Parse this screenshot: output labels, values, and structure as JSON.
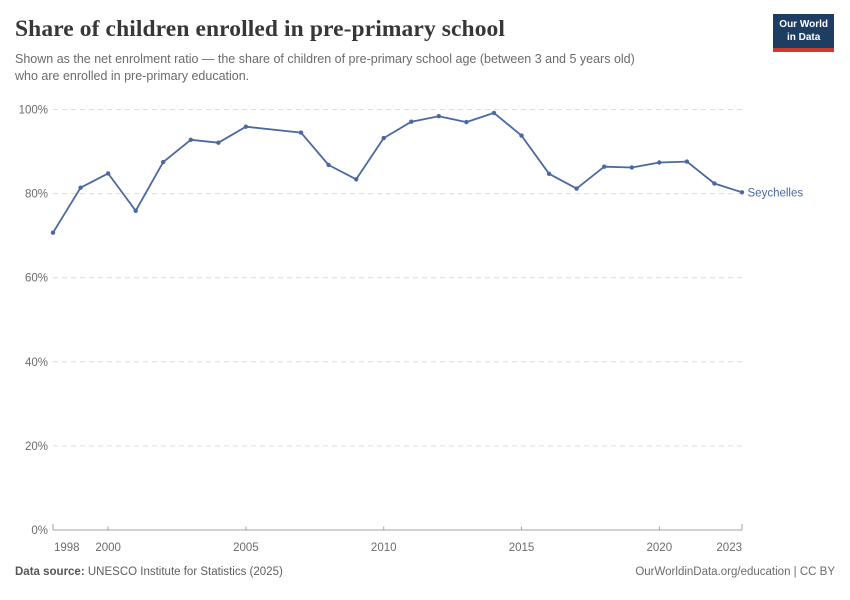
{
  "header": {
    "title": "Share of children enrolled in pre-primary school",
    "subtitle_line1": "Shown as the net enrolment ratio — the share of children of pre-primary school age (between 3 and 5 years old)",
    "subtitle_line2": "who are enrolled in pre-primary education.",
    "logo": {
      "line1": "Our World",
      "line2": "in Data"
    }
  },
  "footer": {
    "datasource_label": "Data source:",
    "datasource_value": "UNESCO Institute for Statistics (2025)",
    "rights": "OurWorldinData.org/education | CC BY"
  },
  "colors": {
    "line": "#4a69a2",
    "grid": "#dcdcdc",
    "axis": "#a3a3a3",
    "tick_text": "#6b6b6b",
    "logo_navy": "#1d3d63",
    "logo_red": "#d4352c"
  },
  "chart_data": {
    "type": "line",
    "title": "Share of children enrolled in pre-primary school",
    "xlabel": "",
    "ylabel": "",
    "xlim": [
      1998,
      2023
    ],
    "ylim": [
      0,
      100
    ],
    "x_ticks": [
      1998,
      2000,
      2005,
      2010,
      2015,
      2020,
      2023
    ],
    "y_ticks": [
      0,
      20,
      40,
      60,
      80,
      100
    ],
    "y_tick_suffix": "%",
    "grid": "horizontal-dashed",
    "legend": "end-of-line-label",
    "note": "2006 value missing; line drawn straight from 2005 to 2007",
    "series": [
      {
        "name": "Seychelles",
        "color": "#4a69a2",
        "points": [
          {
            "year": 1998,
            "value": 70.7
          },
          {
            "year": 1999,
            "value": 81.4
          },
          {
            "year": 2000,
            "value": 84.8
          },
          {
            "year": 2001,
            "value": 75.9
          },
          {
            "year": 2002,
            "value": 87.5
          },
          {
            "year": 2003,
            "value": 92.8
          },
          {
            "year": 2004,
            "value": 92.1
          },
          {
            "year": 2005,
            "value": 95.9
          },
          {
            "year": 2006,
            "value": null
          },
          {
            "year": 2007,
            "value": 94.5
          },
          {
            "year": 2008,
            "value": 86.8
          },
          {
            "year": 2009,
            "value": 83.4
          },
          {
            "year": 2010,
            "value": 93.2
          },
          {
            "year": 2011,
            "value": 97.1
          },
          {
            "year": 2012,
            "value": 98.4
          },
          {
            "year": 2013,
            "value": 97.0
          },
          {
            "year": 2014,
            "value": 99.2
          },
          {
            "year": 2015,
            "value": 93.8
          },
          {
            "year": 2016,
            "value": 84.7
          },
          {
            "year": 2017,
            "value": 81.2
          },
          {
            "year": 2018,
            "value": 86.4
          },
          {
            "year": 2019,
            "value": 86.2
          },
          {
            "year": 2020,
            "value": 87.4
          },
          {
            "year": 2021,
            "value": 87.6
          },
          {
            "year": 2022,
            "value": 82.4
          },
          {
            "year": 2023,
            "value": 80.3
          }
        ]
      }
    ]
  }
}
